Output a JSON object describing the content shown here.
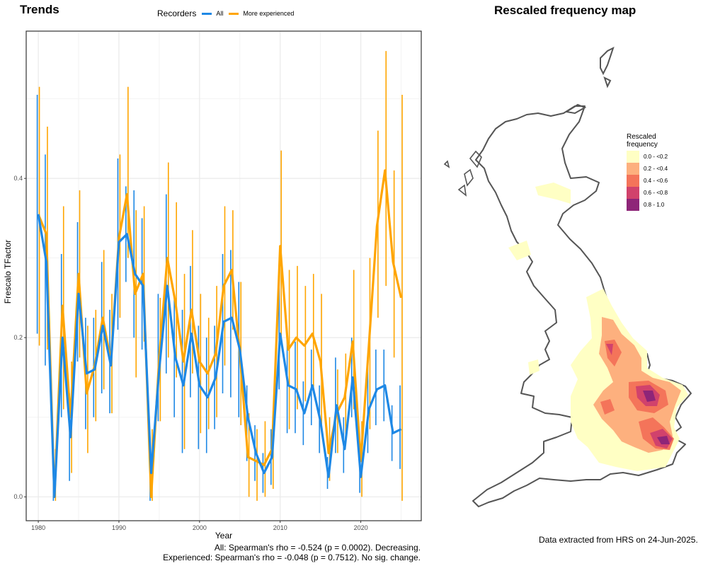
{
  "trends_title": "Trends",
  "map_title": "Rescaled frequency map",
  "legend": {
    "title": "Recorders",
    "items": [
      {
        "label": "All",
        "color": "#1e88e5"
      },
      {
        "label": "More experienced",
        "color": "#ffa500"
      }
    ]
  },
  "chart_data": {
    "type": "line",
    "xlabel": "Year",
    "ylabel": "Frescalo TFactor",
    "xlim": [
      1978.5,
      2027.5
    ],
    "ylim": [
      -0.03,
      0.585
    ],
    "xticks": [
      1980,
      1990,
      2000,
      2010,
      2020
    ],
    "yticks": [
      0.0,
      0.2,
      0.4
    ],
    "ytick_labels": [
      "0.0",
      "0.2",
      "0.4"
    ],
    "grid": true,
    "series": [
      {
        "name": "All",
        "color": "#1e88e5",
        "points": [
          [
            1980,
            0.355,
            0.205,
            0.505
          ],
          [
            1981,
            0.295,
            0.165,
            0.43
          ],
          [
            1982,
            0.0,
            -0.005,
            0.025
          ],
          [
            1983,
            0.2,
            0.1,
            0.305
          ],
          [
            1984,
            0.075,
            0.02,
            0.13
          ],
          [
            1985,
            0.255,
            0.17,
            0.345
          ],
          [
            1986,
            0.155,
            0.085,
            0.225
          ],
          [
            1987,
            0.16,
            0.1,
            0.225
          ],
          [
            1988,
            0.215,
            0.13,
            0.295
          ],
          [
            1989,
            0.165,
            0.105,
            0.235
          ],
          [
            1990,
            0.32,
            0.21,
            0.425
          ],
          [
            1991,
            0.33,
            0.27,
            0.39
          ],
          [
            1992,
            0.28,
            0.2,
            0.385
          ],
          [
            1993,
            0.265,
            0.185,
            0.35
          ],
          [
            1994,
            0.03,
            -0.005,
            0.07
          ],
          [
            1995,
            0.16,
            0.095,
            0.255
          ],
          [
            1996,
            0.265,
            0.155,
            0.38
          ],
          [
            1997,
            0.175,
            0.1,
            0.255
          ],
          [
            1998,
            0.14,
            0.055,
            0.235
          ],
          [
            1999,
            0.205,
            0.125,
            0.29
          ],
          [
            2000,
            0.14,
            0.06,
            0.215
          ],
          [
            2001,
            0.125,
            0.055,
            0.2
          ],
          [
            2002,
            0.15,
            0.085,
            0.215
          ],
          [
            2003,
            0.22,
            0.13,
            0.305
          ],
          [
            2004,
            0.225,
            0.125,
            0.31
          ],
          [
            2005,
            0.185,
            0.1,
            0.27
          ],
          [
            2006,
            0.1,
            0.045,
            0.14
          ],
          [
            2007,
            0.055,
            0.02,
            0.09
          ],
          [
            2008,
            0.03,
            0.005,
            0.055
          ],
          [
            2009,
            0.05,
            0.015,
            0.085
          ],
          [
            2010,
            0.205,
            0.135,
            0.28
          ],
          [
            2011,
            0.14,
            0.08,
            0.205
          ],
          [
            2012,
            0.135,
            0.08,
            0.195
          ],
          [
            2013,
            0.105,
            0.065,
            0.145
          ],
          [
            2014,
            0.14,
            0.09,
            0.185
          ],
          [
            2015,
            0.095,
            0.055,
            0.14
          ],
          [
            2016,
            0.025,
            0.01,
            0.05
          ],
          [
            2017,
            0.115,
            0.055,
            0.175
          ],
          [
            2018,
            0.06,
            0.03,
            0.1
          ],
          [
            2019,
            0.15,
            0.1,
            0.2
          ],
          [
            2020,
            0.025,
            0.005,
            0.05
          ],
          [
            2021,
            0.11,
            0.055,
            0.165
          ],
          [
            2022,
            0.135,
            0.09,
            0.185
          ],
          [
            2023,
            0.14,
            0.095,
            0.185
          ],
          [
            2024,
            0.08,
            0.045,
            0.115
          ],
          [
            2025,
            0.085,
            0.035,
            0.14
          ]
        ]
      },
      {
        "name": "More experienced",
        "color": "#ffa500",
        "points": [
          [
            1980,
            0.355,
            0.19,
            0.515
          ],
          [
            1981,
            0.33,
            0.185,
            0.465
          ],
          [
            1982,
            0.0,
            -0.005,
            0.06
          ],
          [
            1983,
            0.24,
            0.11,
            0.365
          ],
          [
            1984,
            0.1,
            0.03,
            0.17
          ],
          [
            1985,
            0.28,
            0.175,
            0.385
          ],
          [
            1986,
            0.13,
            0.055,
            0.215
          ],
          [
            1987,
            0.165,
            0.095,
            0.235
          ],
          [
            1988,
            0.225,
            0.135,
            0.31
          ],
          [
            1989,
            0.17,
            0.105,
            0.255
          ],
          [
            1990,
            0.325,
            0.225,
            0.43
          ],
          [
            1991,
            0.38,
            0.3,
            0.515
          ],
          [
            1992,
            0.255,
            0.15,
            0.36
          ],
          [
            1993,
            0.28,
            0.195,
            0.365
          ],
          [
            1994,
            0.0,
            -0.005,
            0.085
          ],
          [
            1995,
            0.175,
            0.095,
            0.25
          ],
          [
            1996,
            0.3,
            0.175,
            0.42
          ],
          [
            1997,
            0.245,
            0.15,
            0.37
          ],
          [
            1998,
            0.17,
            0.06,
            0.28
          ],
          [
            1999,
            0.235,
            0.155,
            0.335
          ],
          [
            2000,
            0.17,
            0.08,
            0.255
          ],
          [
            2001,
            0.155,
            0.085,
            0.225
          ],
          [
            2002,
            0.18,
            0.1,
            0.265
          ],
          [
            2003,
            0.265,
            0.165,
            0.365
          ],
          [
            2004,
            0.285,
            0.21,
            0.36
          ],
          [
            2005,
            0.18,
            0.09,
            0.27
          ],
          [
            2006,
            0.05,
            0.0,
            0.105
          ],
          [
            2007,
            0.045,
            -0.005,
            0.085
          ],
          [
            2008,
            0.04,
            0.0,
            0.095
          ],
          [
            2009,
            0.06,
            0.01,
            0.1
          ],
          [
            2010,
            0.315,
            0.195,
            0.435
          ],
          [
            2011,
            0.185,
            0.085,
            0.285
          ],
          [
            2012,
            0.2,
            0.11,
            0.29
          ],
          [
            2013,
            0.19,
            0.12,
            0.265
          ],
          [
            2014,
            0.205,
            0.13,
            0.28
          ],
          [
            2015,
            0.17,
            0.085,
            0.255
          ],
          [
            2016,
            0.055,
            0.02,
            0.1
          ],
          [
            2017,
            0.105,
            0.055,
            0.16
          ],
          [
            2018,
            0.125,
            0.07,
            0.18
          ],
          [
            2019,
            0.195,
            0.11,
            0.285
          ],
          [
            2020,
            0.045,
            0.0,
            0.095
          ],
          [
            2021,
            0.19,
            0.085,
            0.3
          ],
          [
            2022,
            0.34,
            0.225,
            0.46
          ],
          [
            2023,
            0.41,
            0.265,
            0.56
          ],
          [
            2024,
            0.295,
            0.175,
            0.41
          ],
          [
            2025,
            0.25,
            -0.005,
            0.505
          ]
        ]
      }
    ]
  },
  "stats": {
    "all": "All: Spearman's rho = -0.524 (p = 0.0002). Decreasing.",
    "experienced": "Experienced: Spearman's rho = -0.048 (p = 0.7512). No sig. change."
  },
  "map_legend": {
    "title_line1": "Rescaled",
    "title_line2": "frequency",
    "items": [
      {
        "label": "0.0 - <0.2",
        "color": "#ffffc4"
      },
      {
        "label": "0.2 - <0.4",
        "color": "#fdb07e"
      },
      {
        "label": "0.4 - <0.6",
        "color": "#f4745a"
      },
      {
        "label": "0.6 - <0.8",
        "color": "#d1426c"
      },
      {
        "label": "0.8 - 1.0",
        "color": "#8e2578"
      }
    ]
  },
  "source": "Data extracted from HRS on 24-Jun-2025."
}
